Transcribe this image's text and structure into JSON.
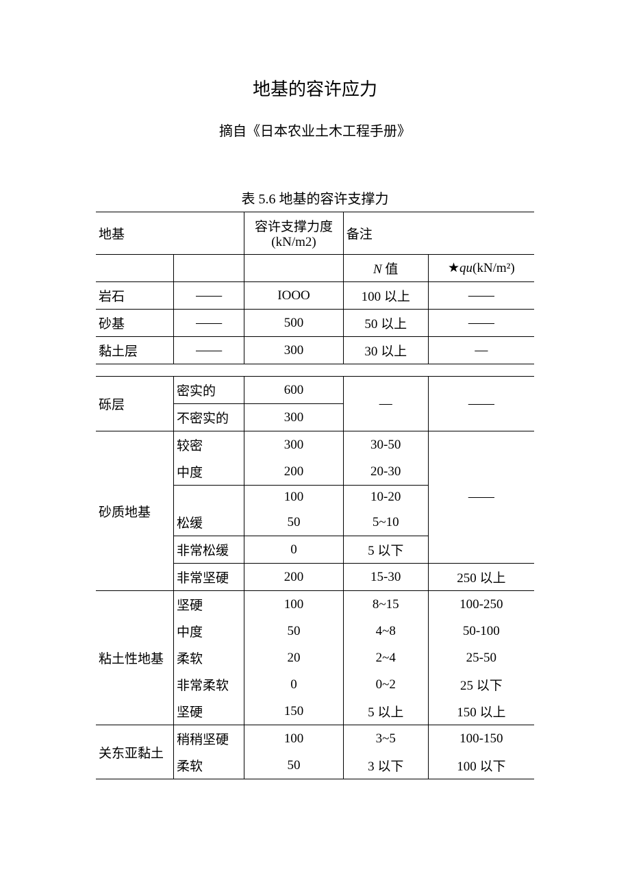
{
  "title": "地基的容许应力",
  "subtitle": "摘自《日本农业土木工程手册》",
  "caption": "表 5.6 地基的容许支撑力",
  "headers": {
    "col1": "地基",
    "col3_line1": "容许支撑力度",
    "col3_line2": "(kN/m2)",
    "col4_5": "备注",
    "sub_n": "N 值",
    "sub_star": "★",
    "sub_qu_italic": "qu",
    "sub_qu_unit": "(kN/m²)"
  },
  "section1": [
    {
      "a": "岩石",
      "b": "——",
      "c": "IOOO",
      "d": "100 以上",
      "e": "——"
    },
    {
      "a": "砂基",
      "b": "——",
      "c": "500",
      "d": "50 以上",
      "e": "——"
    },
    {
      "a": "黏土层",
      "b": "——",
      "c": "300",
      "d": "30 以上",
      "e": "—"
    }
  ],
  "section2": {
    "group1": {
      "label": "砾层",
      "rows": [
        {
          "b": "密实的",
          "c": "600",
          "d": "—",
          "e": "——"
        },
        {
          "b": "不密实的",
          "c": "300",
          "d": "",
          "e": ""
        }
      ]
    },
    "group2": {
      "label": "砂质地基",
      "rows": [
        {
          "b": "较密",
          "c": "300",
          "d": "30-50",
          "e": ""
        },
        {
          "b": "中度",
          "c": "200",
          "d": "20-30",
          "e": ""
        },
        {
          "b": "",
          "c": "100",
          "d": "10-20",
          "e": "——"
        },
        {
          "b": "松缓",
          "c": "50",
          "d": "5~10",
          "e": ""
        },
        {
          "b": "非常松缓",
          "c": "0",
          "d": "5 以下",
          "e": ""
        },
        {
          "b": "非常坚硬",
          "c": "200",
          "d": "15-30",
          "e": "250 以上"
        }
      ]
    },
    "group3": {
      "label": "粘土性地基",
      "rows": [
        {
          "b": "坚硬",
          "c": "100",
          "d": "8~15",
          "e": "100-250"
        },
        {
          "b": "中度",
          "c": "50",
          "d": "4~8",
          "e": "50-100"
        },
        {
          "b": "柔软",
          "c": "20",
          "d": "2~4",
          "e": "25-50"
        },
        {
          "b": "非常柔软",
          "c": "0",
          "d": "0~2",
          "e": "25 以下"
        },
        {
          "b": "坚硬",
          "c": "150",
          "d": "5 以上",
          "e": "150 以上"
        }
      ]
    },
    "group4": {
      "label": "关东亚黏土",
      "rows": [
        {
          "b": "稍稍坚硬",
          "c": "100",
          "d": "3~5",
          "e": "100-150"
        },
        {
          "b": "柔软",
          "c": "50",
          "d": "3 以下",
          "e": "100 以下"
        }
      ]
    }
  }
}
